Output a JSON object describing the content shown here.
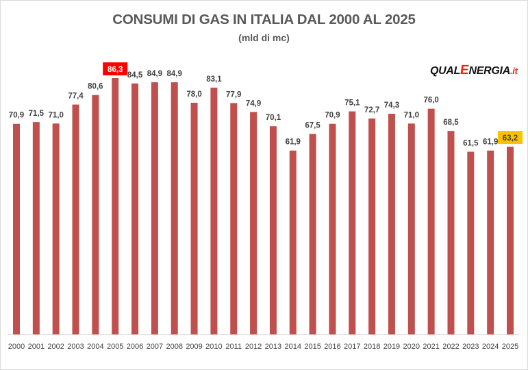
{
  "chart_data": {
    "type": "bar",
    "title": "CONSUMI DI GAS IN ITALIA DAL 2000 AL 2025",
    "subtitle": "(mld di mc)",
    "categories": [
      "2000",
      "2001",
      "2002",
      "2003",
      "2004",
      "2005",
      "2006",
      "2007",
      "2008",
      "2009",
      "2010",
      "2011",
      "2012",
      "2013",
      "2014",
      "2015",
      "2016",
      "2017",
      "2018",
      "2019",
      "2020",
      "2021",
      "2022",
      "2023",
      "2024",
      "2025"
    ],
    "values": [
      70.9,
      71.5,
      71.0,
      77.4,
      80.6,
      86.3,
      84.5,
      84.9,
      84.9,
      78.0,
      83.1,
      77.9,
      74.9,
      70.1,
      61.9,
      67.5,
      70.9,
      75.1,
      72.7,
      74.3,
      71.0,
      76.0,
      68.5,
      61.5,
      61.9,
      63.2
    ],
    "labels": [
      "70,9",
      "71,5",
      "71,0",
      "77,4",
      "80,6",
      "86,3",
      "84,5",
      "84,9",
      "84,9",
      "78,0",
      "83,1",
      "77,9",
      "74,9",
      "70,1",
      "61,9",
      "67,5",
      "70,9",
      "75,1",
      "72,7",
      "74,3",
      "71,0",
      "76,0",
      "68,5",
      "61,5",
      "61,9",
      "63,2"
    ],
    "highlight_max": {
      "category": "2005",
      "color": "#ff0000"
    },
    "highlight_last": {
      "category": "2025",
      "color": "#ffc000"
    },
    "bar_color": "#c0504d",
    "ylim": [
      0,
      86.3
    ],
    "grid": false,
    "legend": "none"
  },
  "logo": {
    "part1": "QUAL",
    "part2": "E",
    "part3": "NERGIA",
    "part4": ".it"
  }
}
